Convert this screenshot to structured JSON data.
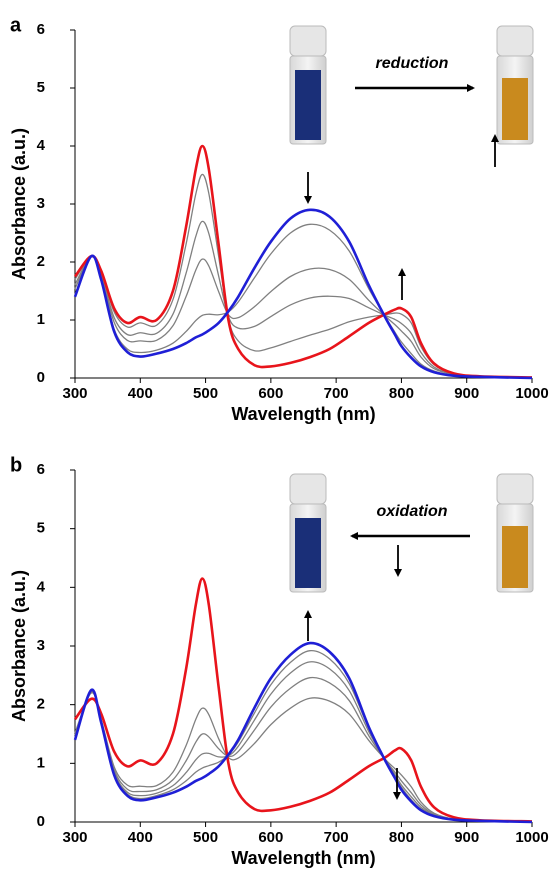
{
  "chart_data": [
    {
      "type": "line",
      "panel_label": "a",
      "annotation": "reduction",
      "xlabel": "Wavelength (nm)",
      "ylabel": "Absorbance (a.u.)",
      "xlim": [
        300,
        1000
      ],
      "ylim": [
        0,
        6
      ],
      "xticks": [
        300,
        400,
        500,
        600,
        700,
        800,
        900,
        1000
      ],
      "yticks": [
        0,
        1,
        2,
        3,
        4,
        5,
        6
      ],
      "x": [
        300,
        325,
        340,
        360,
        380,
        400,
        425,
        450,
        470,
        485,
        495,
        505,
        520,
        535,
        550,
        575,
        600,
        630,
        660,
        690,
        720,
        750,
        775,
        790,
        800,
        815,
        830,
        850,
        880,
        920,
        1000
      ],
      "series": [
        {
          "color": "#808080",
          "values": [
            1.44,
            2.1,
            1.72,
            0.84,
            0.5,
            0.44,
            0.48,
            0.6,
            0.8,
            0.99,
            1.08,
            1.1,
            1.09,
            1.14,
            1.31,
            1.73,
            2.14,
            2.5,
            2.65,
            2.55,
            2.19,
            1.54,
            1.06,
            0.79,
            0.62,
            0.42,
            0.24,
            0.12,
            0.04,
            0.02,
            0
          ]
        },
        {
          "color": "#808080",
          "values": [
            1.54,
            2.1,
            1.76,
            0.96,
            0.65,
            0.64,
            0.65,
            0.9,
            1.4,
            1.86,
            2.05,
            1.93,
            1.49,
            1.09,
            1.04,
            1.23,
            1.49,
            1.75,
            1.88,
            1.87,
            1.7,
            1.34,
            1.07,
            0.92,
            0.81,
            0.63,
            0.36,
            0.16,
            0.06,
            0.02,
            0
          ]
        },
        {
          "color": "#808080",
          "values": [
            1.61,
            2.1,
            1.79,
            1.04,
            0.75,
            0.78,
            0.77,
            1.1,
            1.8,
            2.44,
            2.7,
            2.49,
            1.76,
            1.06,
            0.86,
            0.89,
            1.06,
            1.26,
            1.38,
            1.41,
            1.37,
            1.21,
            1.08,
            1.01,
            0.94,
            0.77,
            0.44,
            0.19,
            0.06,
            0.03,
            0.01
          ]
        },
        {
          "color": "#808080",
          "values": [
            1.7,
            2.1,
            1.83,
            1.14,
            0.88,
            0.95,
            0.91,
            1.35,
            2.3,
            3.17,
            3.51,
            3.18,
            2.1,
            1.02,
            0.64,
            0.47,
            0.52,
            0.63,
            0.74,
            0.84,
            0.97,
            1.05,
            1.09,
            1.12,
            1.1,
            0.95,
            0.54,
            0.23,
            0.07,
            0.03,
            0.01
          ]
        },
        {
          "color": "#e8141b",
          "values": [
            1.75,
            2.1,
            1.85,
            1.2,
            0.95,
            1.05,
            1.0,
            1.5,
            2.6,
            3.6,
            4.0,
            3.6,
            2.3,
            1.0,
            0.5,
            0.22,
            0.2,
            0.26,
            0.36,
            0.5,
            0.72,
            0.95,
            1.1,
            1.18,
            1.2,
            1.05,
            0.6,
            0.25,
            0.08,
            0.03,
            0.01
          ]
        },
        {
          "color": "#1f1fd6",
          "values": [
            1.4,
            2.1,
            1.7,
            0.8,
            0.45,
            0.37,
            0.42,
            0.5,
            0.6,
            0.7,
            0.75,
            0.82,
            0.95,
            1.15,
            1.4,
            1.9,
            2.35,
            2.75,
            2.9,
            2.78,
            2.35,
            1.6,
            1.05,
            0.75,
            0.55,
            0.35,
            0.2,
            0.1,
            0.04,
            0.02,
            0
          ]
        }
      ]
    },
    {
      "type": "line",
      "panel_label": "b",
      "annotation": "oxidation",
      "xlabel": "Wavelength (nm)",
      "ylabel": "Absorbance (a.u.)",
      "xlim": [
        300,
        1000
      ],
      "ylim": [
        0,
        6
      ],
      "xticks": [
        300,
        400,
        500,
        600,
        700,
        800,
        900,
        1000
      ],
      "yticks": [
        0,
        1,
        2,
        3,
        4,
        5,
        6
      ],
      "x": [
        300,
        325,
        340,
        360,
        380,
        400,
        425,
        450,
        470,
        485,
        495,
        505,
        520,
        535,
        550,
        575,
        600,
        630,
        660,
        690,
        720,
        750,
        775,
        790,
        800,
        815,
        830,
        850,
        880,
        920,
        1000
      ],
      "series": [
        {
          "color": "#808080",
          "values": [
            1.52,
            2.2,
            1.75,
            0.94,
            0.63,
            0.61,
            0.62,
            0.85,
            1.3,
            1.75,
            1.94,
            1.83,
            1.42,
            1.1,
            1.09,
            1.34,
            1.66,
            1.94,
            2.11,
            2.06,
            1.84,
            1.39,
            1.07,
            0.91,
            0.8,
            0.6,
            0.34,
            0.15,
            0.05,
            0.02,
            0
          ]
        },
        {
          "color": "#808080",
          "values": [
            1.48,
            2.22,
            1.73,
            0.89,
            0.56,
            0.52,
            0.55,
            0.72,
            1.04,
            1.36,
            1.5,
            1.45,
            1.25,
            1.12,
            1.2,
            1.57,
            1.96,
            2.28,
            2.46,
            2.37,
            2.07,
            1.47,
            1.06,
            0.85,
            0.7,
            0.5,
            0.29,
            0.13,
            0.05,
            0.02,
            0
          ]
        },
        {
          "color": "#808080",
          "values": [
            1.44,
            2.23,
            1.72,
            0.85,
            0.51,
            0.45,
            0.49,
            0.62,
            0.84,
            1.06,
            1.16,
            1.17,
            1.11,
            1.13,
            1.29,
            1.74,
            2.18,
            2.54,
            2.73,
            2.61,
            2.24,
            1.54,
            1.06,
            0.81,
            0.63,
            0.43,
            0.25,
            0.12,
            0.04,
            0.02,
            0
          ]
        },
        {
          "color": "#808080",
          "values": [
            1.42,
            2.24,
            1.71,
            0.82,
            0.48,
            0.4,
            0.45,
            0.55,
            0.7,
            0.85,
            0.92,
            0.96,
            1.02,
            1.14,
            1.36,
            1.86,
            2.34,
            2.72,
            2.92,
            2.78,
            2.36,
            1.59,
            1.05,
            0.77,
            0.59,
            0.38,
            0.22,
            0.11,
            0.04,
            0.02,
            0
          ]
        },
        {
          "color": "#e8141b",
          "values": [
            1.75,
            2.1,
            1.85,
            1.2,
            0.95,
            1.05,
            1.0,
            1.5,
            2.6,
            3.7,
            4.15,
            3.7,
            2.3,
            1.0,
            0.5,
            0.22,
            0.2,
            0.26,
            0.36,
            0.5,
            0.72,
            0.95,
            1.1,
            1.22,
            1.25,
            1.05,
            0.6,
            0.25,
            0.08,
            0.03,
            0.01
          ]
        },
        {
          "color": "#1f1fd6",
          "values": [
            1.4,
            2.25,
            1.7,
            0.8,
            0.45,
            0.37,
            0.42,
            0.5,
            0.6,
            0.7,
            0.75,
            0.82,
            0.95,
            1.15,
            1.4,
            1.95,
            2.45,
            2.85,
            3.05,
            2.9,
            2.45,
            1.62,
            1.05,
            0.75,
            0.55,
            0.35,
            0.2,
            0.1,
            0.04,
            0.02,
            0
          ]
        }
      ]
    }
  ]
}
